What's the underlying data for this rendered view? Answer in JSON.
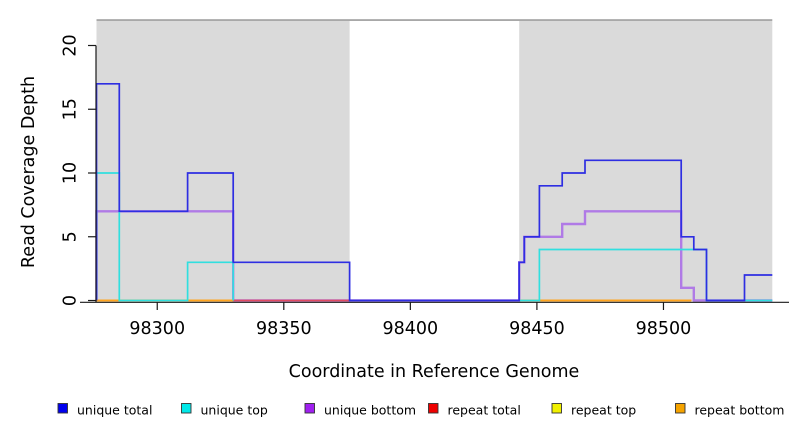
{
  "chart_data": {
    "type": "line",
    "subtype": "step-coverage",
    "title": "",
    "xlabel": "Coordinate in Reference Genome",
    "ylabel": "Read Coverage Depth",
    "xlim": [
      98276,
      98543
    ],
    "ylim": [
      0,
      22
    ],
    "x_ticks": [
      98300,
      98350,
      98400,
      98450,
      98500
    ],
    "y_ticks": [
      0,
      5,
      10,
      15,
      20
    ],
    "grid": false,
    "legend_position": "bottom",
    "plot_bg": "#ffffff",
    "covered_region_color": "#dadada",
    "covered_regions": [
      [
        98276,
        98376
      ],
      [
        98443,
        98543
      ]
    ],
    "cap_line": {
      "value": 22,
      "color": "#9c9c9c"
    },
    "axis_color": "#1a1a1a",
    "series": [
      {
        "label": "unique total",
        "line_color": "#2e2ee2",
        "swatch_color": "#0000ee",
        "width": 1.7,
        "segments": [
          [
            [
              98276,
              0
            ],
            [
              98276,
              17
            ],
            [
              98285,
              7
            ],
            [
              98312,
              10
            ],
            [
              98330,
              3
            ],
            [
              98376,
              0
            ],
            [
              98443,
              3
            ],
            [
              98445,
              5
            ],
            [
              98451,
              9
            ],
            [
              98460,
              10
            ],
            [
              98469,
              11
            ],
            [
              98507,
              5
            ],
            [
              98512,
              4
            ],
            [
              98517,
              0
            ],
            [
              98532,
              2
            ],
            [
              98543,
              2
            ]
          ]
        ]
      },
      {
        "label": "unique top",
        "line_color": "#30dfdf",
        "swatch_color": "#00e8e8",
        "width": 1.7,
        "segments": [
          [
            [
              98276,
              0
            ],
            [
              98276,
              10
            ],
            [
              98285,
              0
            ],
            [
              98312,
              3
            ],
            [
              98330,
              0
            ]
          ],
          [
            [
              98443,
              0
            ],
            [
              98451,
              4
            ],
            [
              98517,
              0
            ],
            [
              98543,
              0
            ]
          ]
        ]
      },
      {
        "label": "unique bottom",
        "line_color": "#b07ae6",
        "swatch_color": "#a020f0",
        "width": 2.4,
        "segments": [
          [
            [
              98276,
              0
            ],
            [
              98276,
              7
            ],
            [
              98330,
              0
            ],
            [
              98443,
              3
            ],
            [
              98445,
              5
            ],
            [
              98460,
              6
            ],
            [
              98469,
              7
            ],
            [
              98507,
              1
            ],
            [
              98512,
              0
            ],
            [
              98543,
              0
            ]
          ]
        ]
      },
      {
        "label": "repeat total",
        "line_color": "#e04a60",
        "swatch_color": "#ee0000",
        "width": 1.7,
        "segments": [
          [
            [
              98276,
              0
            ],
            [
              98376,
              0
            ]
          ],
          [
            [
              98443,
              0
            ],
            [
              98511,
              0
            ]
          ]
        ]
      },
      {
        "label": "repeat top",
        "line_color": "#f0f000",
        "swatch_color": "#f0f000",
        "width": 1.7,
        "segments": [
          [
            [
              98276,
              0
            ],
            [
              98330,
              0
            ]
          ],
          [
            [
              98443,
              0
            ],
            [
              98511,
              0
            ]
          ]
        ]
      },
      {
        "label": "repeat bottom",
        "line_color": "#ffa41e",
        "swatch_color": "#f5a300",
        "width": 2.0,
        "segments": [
          [
            [
              98276,
              0
            ],
            [
              98330,
              0
            ]
          ],
          [
            [
              98443,
              0
            ],
            [
              98511,
              0
            ]
          ]
        ]
      }
    ],
    "draw_order": [
      2,
      4,
      3,
      5,
      1,
      0
    ]
  }
}
